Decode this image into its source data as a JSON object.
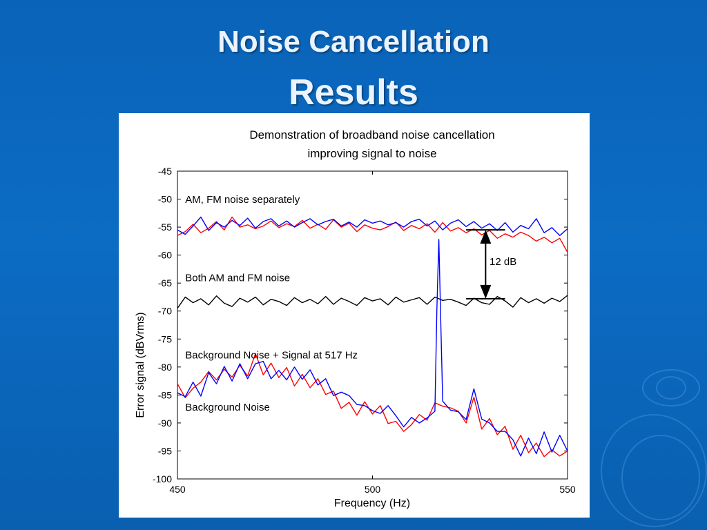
{
  "slide": {
    "title_line1": "Noise Cancellation",
    "title_line2": "Results"
  },
  "colors": {
    "background": "#0b66bd",
    "title_text": "#eaf3ff",
    "red_series": "#ff0000",
    "blue_series": "#0000ff",
    "black_series": "#000000"
  },
  "chart_data": {
    "type": "line",
    "title": "Demonstration of broadband noise cancellation",
    "subtitle": "improving signal to noise",
    "xlabel": "Frequency (Hz)",
    "ylabel": "Error signal (dBVrms)",
    "xlim": [
      450,
      550
    ],
    "ylim": [
      -100,
      -45
    ],
    "xticks": [
      450,
      500,
      550
    ],
    "yticks": [
      -45,
      -50,
      -55,
      -60,
      -65,
      -70,
      -75,
      -80,
      -85,
      -90,
      -95,
      -100
    ],
    "grid": false,
    "annotations": [
      {
        "text": "AM, FM noise separately",
        "x": 452,
        "y": -50.7
      },
      {
        "text": "Both AM and FM noise",
        "x": 452,
        "y": -64.7
      },
      {
        "text": "Background Noise + Signal at 517 Hz",
        "x": 452,
        "y": -78.5
      },
      {
        "text": "Background Noise",
        "x": 452,
        "y": -87.8
      },
      {
        "text": "12 dB",
        "x": 530,
        "y": -61.8
      }
    ],
    "dimension_arrow": {
      "x": 529,
      "y_top": -55.5,
      "y_bottom": -67.8,
      "label": "12 dB",
      "x_left": 524,
      "x_right": 534
    },
    "series": [
      {
        "color": "#ff0000",
        "x": [
          450,
          452,
          454,
          456,
          458,
          460,
          462,
          464,
          466,
          468,
          470,
          472,
          474,
          476,
          478,
          480,
          482,
          484,
          486,
          488,
          490,
          492,
          494,
          496,
          498,
          500,
          502,
          504,
          506,
          508,
          510,
          512,
          514,
          516,
          518,
          520,
          522,
          524,
          526,
          528,
          530,
          532,
          534,
          536,
          538,
          540,
          542,
          544,
          546,
          548,
          550
        ],
        "y": [
          -56.5,
          -55.8,
          -54.5,
          -56.0,
          -55.2,
          -54.0,
          -55.5,
          -53.2,
          -55.0,
          -54.6,
          -55.3,
          -54.8,
          -53.9,
          -55.1,
          -54.4,
          -54.9,
          -53.8,
          -55.2,
          -54.5,
          -55.4,
          -53.7,
          -55.0,
          -54.3,
          -55.8,
          -54.6,
          -55.2,
          -55.5,
          -54.9,
          -54.1,
          -55.6,
          -54.7,
          -55.3,
          -54.4,
          -55.9,
          -54.2,
          -55.7,
          -55.1,
          -56.0,
          -55.3,
          -56.4,
          -55.6,
          -57.0,
          -56.2,
          -56.8,
          -55.9,
          -56.5,
          -57.5,
          -56.8,
          -57.8,
          -57.0,
          -59.5
        ]
      },
      {
        "color": "#0000ff",
        "x": [
          450,
          452,
          454,
          456,
          458,
          460,
          462,
          464,
          466,
          468,
          470,
          472,
          474,
          476,
          478,
          480,
          482,
          484,
          486,
          488,
          490,
          492,
          494,
          496,
          498,
          500,
          502,
          504,
          506,
          508,
          510,
          512,
          514,
          516,
          518,
          520,
          522,
          524,
          526,
          528,
          530,
          532,
          534,
          536,
          538,
          540,
          542,
          544,
          546,
          548,
          550
        ],
        "y": [
          -55.5,
          -56.3,
          -54.8,
          -53.2,
          -55.6,
          -54.2,
          -55.0,
          -53.8,
          -54.7,
          -53.4,
          -55.2,
          -54.0,
          -53.5,
          -54.8,
          -53.9,
          -55.0,
          -54.2,
          -53.5,
          -54.6,
          -54.0,
          -53.6,
          -54.8,
          -54.1,
          -55.0,
          -53.7,
          -54.3,
          -53.9,
          -54.6,
          -54.2,
          -55.0,
          -54.0,
          -53.6,
          -54.8,
          -53.9,
          -55.5,
          -54.3,
          -53.7,
          -54.9,
          -54.0,
          -55.2,
          -54.4,
          -55.6,
          -54.2,
          -55.9,
          -54.7,
          -55.3,
          -53.5,
          -56.0,
          -55.1,
          -56.5,
          -55.3
        ]
      },
      {
        "color": "#000000",
        "x": [
          450,
          452,
          454,
          456,
          458,
          460,
          462,
          464,
          466,
          468,
          470,
          472,
          474,
          476,
          478,
          480,
          482,
          484,
          486,
          488,
          490,
          492,
          494,
          496,
          498,
          500,
          502,
          504,
          506,
          508,
          510,
          512,
          514,
          516,
          518,
          520,
          522,
          524,
          526,
          528,
          530,
          532,
          534,
          536,
          538,
          540,
          542,
          544,
          546,
          548,
          550
        ],
        "y": [
          -69.5,
          -67.5,
          -68.5,
          -67.8,
          -68.9,
          -67.3,
          -68.6,
          -69.2,
          -67.7,
          -68.4,
          -67.5,
          -68.9,
          -67.9,
          -68.3,
          -69.0,
          -67.6,
          -68.5,
          -67.9,
          -68.7,
          -67.4,
          -68.8,
          -67.7,
          -68.3,
          -69.0,
          -67.6,
          -68.2,
          -67.8,
          -68.9,
          -67.5,
          -68.4,
          -68.0,
          -67.6,
          -68.8,
          -67.5,
          -68.1,
          -67.9,
          -68.4,
          -69.0,
          -67.7,
          -68.5,
          -68.8,
          -67.4,
          -68.2,
          -69.3,
          -67.6,
          -68.5,
          -67.8,
          -68.6,
          -67.7,
          -68.3,
          -67.2
        ]
      },
      {
        "color": "#ff0000",
        "x": [
          450,
          452,
          454,
          456,
          458,
          460,
          462,
          464,
          466,
          468,
          470,
          472,
          474,
          476,
          478,
          480,
          482,
          484,
          486,
          488,
          490,
          492,
          494,
          496,
          498,
          500,
          502,
          504,
          506,
          508,
          510,
          512,
          514,
          516,
          518,
          520,
          522,
          524,
          526,
          528,
          530,
          532,
          534,
          536,
          538,
          540,
          542,
          544,
          546,
          548,
          550
        ],
        "y": [
          -83.0,
          -85.5,
          -83.8,
          -82.7,
          -80.8,
          -82.3,
          -80.4,
          -81.8,
          -79.7,
          -81.6,
          -77.6,
          -81.4,
          -79.3,
          -81.9,
          -80.1,
          -83.4,
          -81.3,
          -83.7,
          -82.1,
          -84.9,
          -84.3,
          -87.4,
          -86.3,
          -88.6,
          -86.2,
          -88.4,
          -86.9,
          -90.1,
          -89.7,
          -91.5,
          -90.3,
          -88.5,
          -89.5,
          -86.4,
          -87.0,
          -87.3,
          -87.9,
          -90.0,
          -85.4,
          -91.1,
          -89.2,
          -92.1,
          -90.6,
          -94.7,
          -92.2,
          -95.3,
          -93.6,
          -96.0,
          -94.8,
          -95.9,
          -95.0
        ]
      },
      {
        "color": "#0000ff",
        "x": [
          450,
          452,
          454,
          456,
          458,
          460,
          462,
          464,
          466,
          468,
          470,
          472,
          474,
          476,
          478,
          480,
          482,
          484,
          486,
          488,
          490,
          492,
          494,
          496,
          498,
          500,
          502,
          504,
          506,
          508,
          510,
          512,
          514,
          516,
          516.5,
          517,
          517.5,
          518,
          520,
          522,
          524,
          526,
          528,
          530,
          532,
          534,
          536,
          538,
          540,
          542,
          544,
          546,
          548,
          550
        ],
        "y": [
          -84.6,
          -85.3,
          -82.7,
          -85.2,
          -81.0,
          -83.0,
          -79.9,
          -82.5,
          -79.4,
          -82.1,
          -79.4,
          -79.0,
          -82.1,
          -80.6,
          -82.3,
          -80.0,
          -82.2,
          -80.5,
          -83.2,
          -82.1,
          -85.1,
          -84.5,
          -85.1,
          -86.7,
          -86.9,
          -87.8,
          -88.3,
          -86.9,
          -88.7,
          -90.7,
          -89.0,
          -90.0,
          -89.1,
          -87.9,
          -70.0,
          -57.2,
          -72.0,
          -86.1,
          -87.7,
          -88.0,
          -89.4,
          -83.9,
          -89.3,
          -90.0,
          -91.5,
          -91.5,
          -93.0,
          -95.9,
          -92.7,
          -95.5,
          -91.6,
          -95.2,
          -92.2,
          -95.0
        ]
      }
    ]
  }
}
